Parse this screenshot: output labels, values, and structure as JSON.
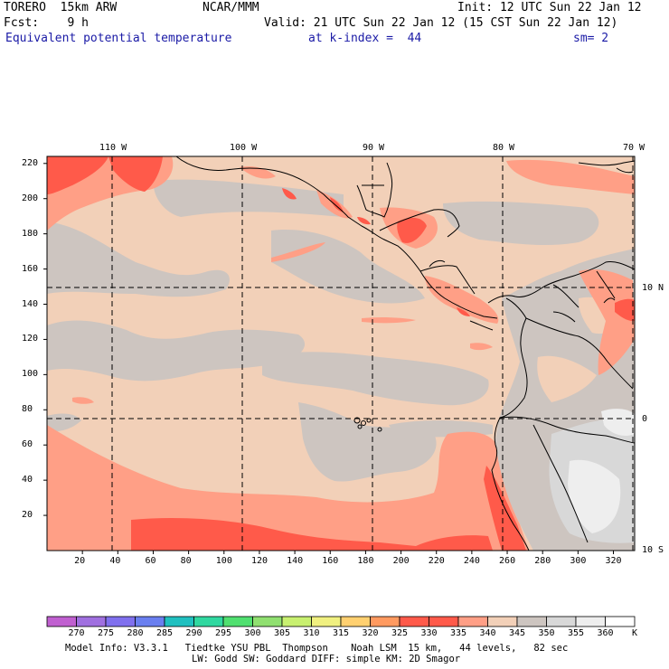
{
  "header": {
    "model": "TORERO  15km ARW",
    "org": "NCAR/MMM",
    "init": "Init: 12 UTC Sun 22 Jan 12",
    "fcst": "Fcst:    9 h",
    "valid": "Valid: 21 UTC Sun 22 Jan 12 (15 CST Sun 22 Jan 12)",
    "field": "Equivalent potential temperature",
    "level": "at k-index =  44",
    "smooth": "sm= 2"
  },
  "axes": {
    "top_lon": [
      "110 W",
      "100 W",
      "90 W",
      "80 W",
      "70 W"
    ],
    "right_lat": [
      "10 N",
      "0",
      "10 S"
    ],
    "left_ticks": [
      220,
      200,
      180,
      160,
      140,
      120,
      100,
      80,
      60,
      40,
      20
    ],
    "bottom_ticks": [
      20,
      40,
      60,
      80,
      100,
      120,
      140,
      160,
      180,
      200,
      220,
      240,
      260,
      280,
      300,
      320
    ]
  },
  "colorbar": {
    "labels": [
      "270",
      "275",
      "280",
      "285",
      "290",
      "295",
      "300",
      "305",
      "310",
      "315",
      "320",
      "325",
      "330",
      "335",
      "340",
      "345",
      "350",
      "355",
      "360"
    ],
    "unit": "K",
    "colors": [
      "#c060d0",
      "#a070e0",
      "#8070ee",
      "#6a7ff0",
      "#20c0c0",
      "#30d8a0",
      "#50e070",
      "#90e070",
      "#c8f070",
      "#f0f080",
      "#ffd070",
      "#ff9a60",
      "#ff5a4a",
      "#ff5a4a",
      "#ff9f86",
      "#f2d0b8",
      "#cdc5c0",
      "#d8d8d8",
      "#eeeeee",
      "#ffffff"
    ]
  },
  "footer": {
    "line1": "Model Info: V3.3.1   Tiedtke YSU PBL  Thompson    Noah LSM  15 km,   44 levels,   82 sec",
    "line2": "LW: Godd SW: Goddard DIFF: simple KM: 2D Smagor"
  }
}
